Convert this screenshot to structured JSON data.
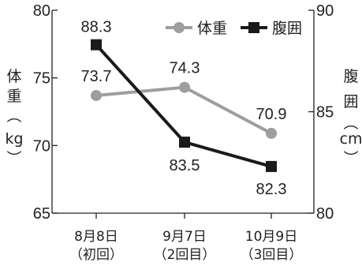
{
  "chart_data": {
    "type": "line",
    "categories": [
      {
        "line1": "8月8日",
        "line2": "（初回）"
      },
      {
        "line1": "9月7日",
        "line2": "（2回目）"
      },
      {
        "line1": "10月9日",
        "line2": "（3回目）"
      }
    ],
    "series": [
      {
        "name": "体重",
        "axis": "left",
        "values": [
          73.7,
          74.3,
          70.9
        ],
        "labels": [
          "73.7",
          "74.3",
          "70.9"
        ],
        "color": "#9e9e9e",
        "marker": "circle"
      },
      {
        "name": "腹囲",
        "axis": "right",
        "values": [
          88.3,
          83.5,
          82.3
        ],
        "labels": [
          "88.3",
          "83.5",
          "82.3"
        ],
        "color": "#1a1a1a",
        "marker": "square"
      }
    ],
    "y_left": {
      "label_chars": [
        "体",
        "重",
        "︵",
        "kg",
        "︶"
      ],
      "ylim": [
        65,
        80
      ],
      "ticks": [
        65,
        70,
        75,
        80
      ]
    },
    "y_right": {
      "label_chars": [
        "腹",
        "囲",
        "︵",
        "cm",
        "︶"
      ],
      "ylim": [
        80,
        90
      ],
      "ticks": [
        80,
        85,
        90
      ]
    },
    "grid": false,
    "legend_position": "top-right"
  }
}
